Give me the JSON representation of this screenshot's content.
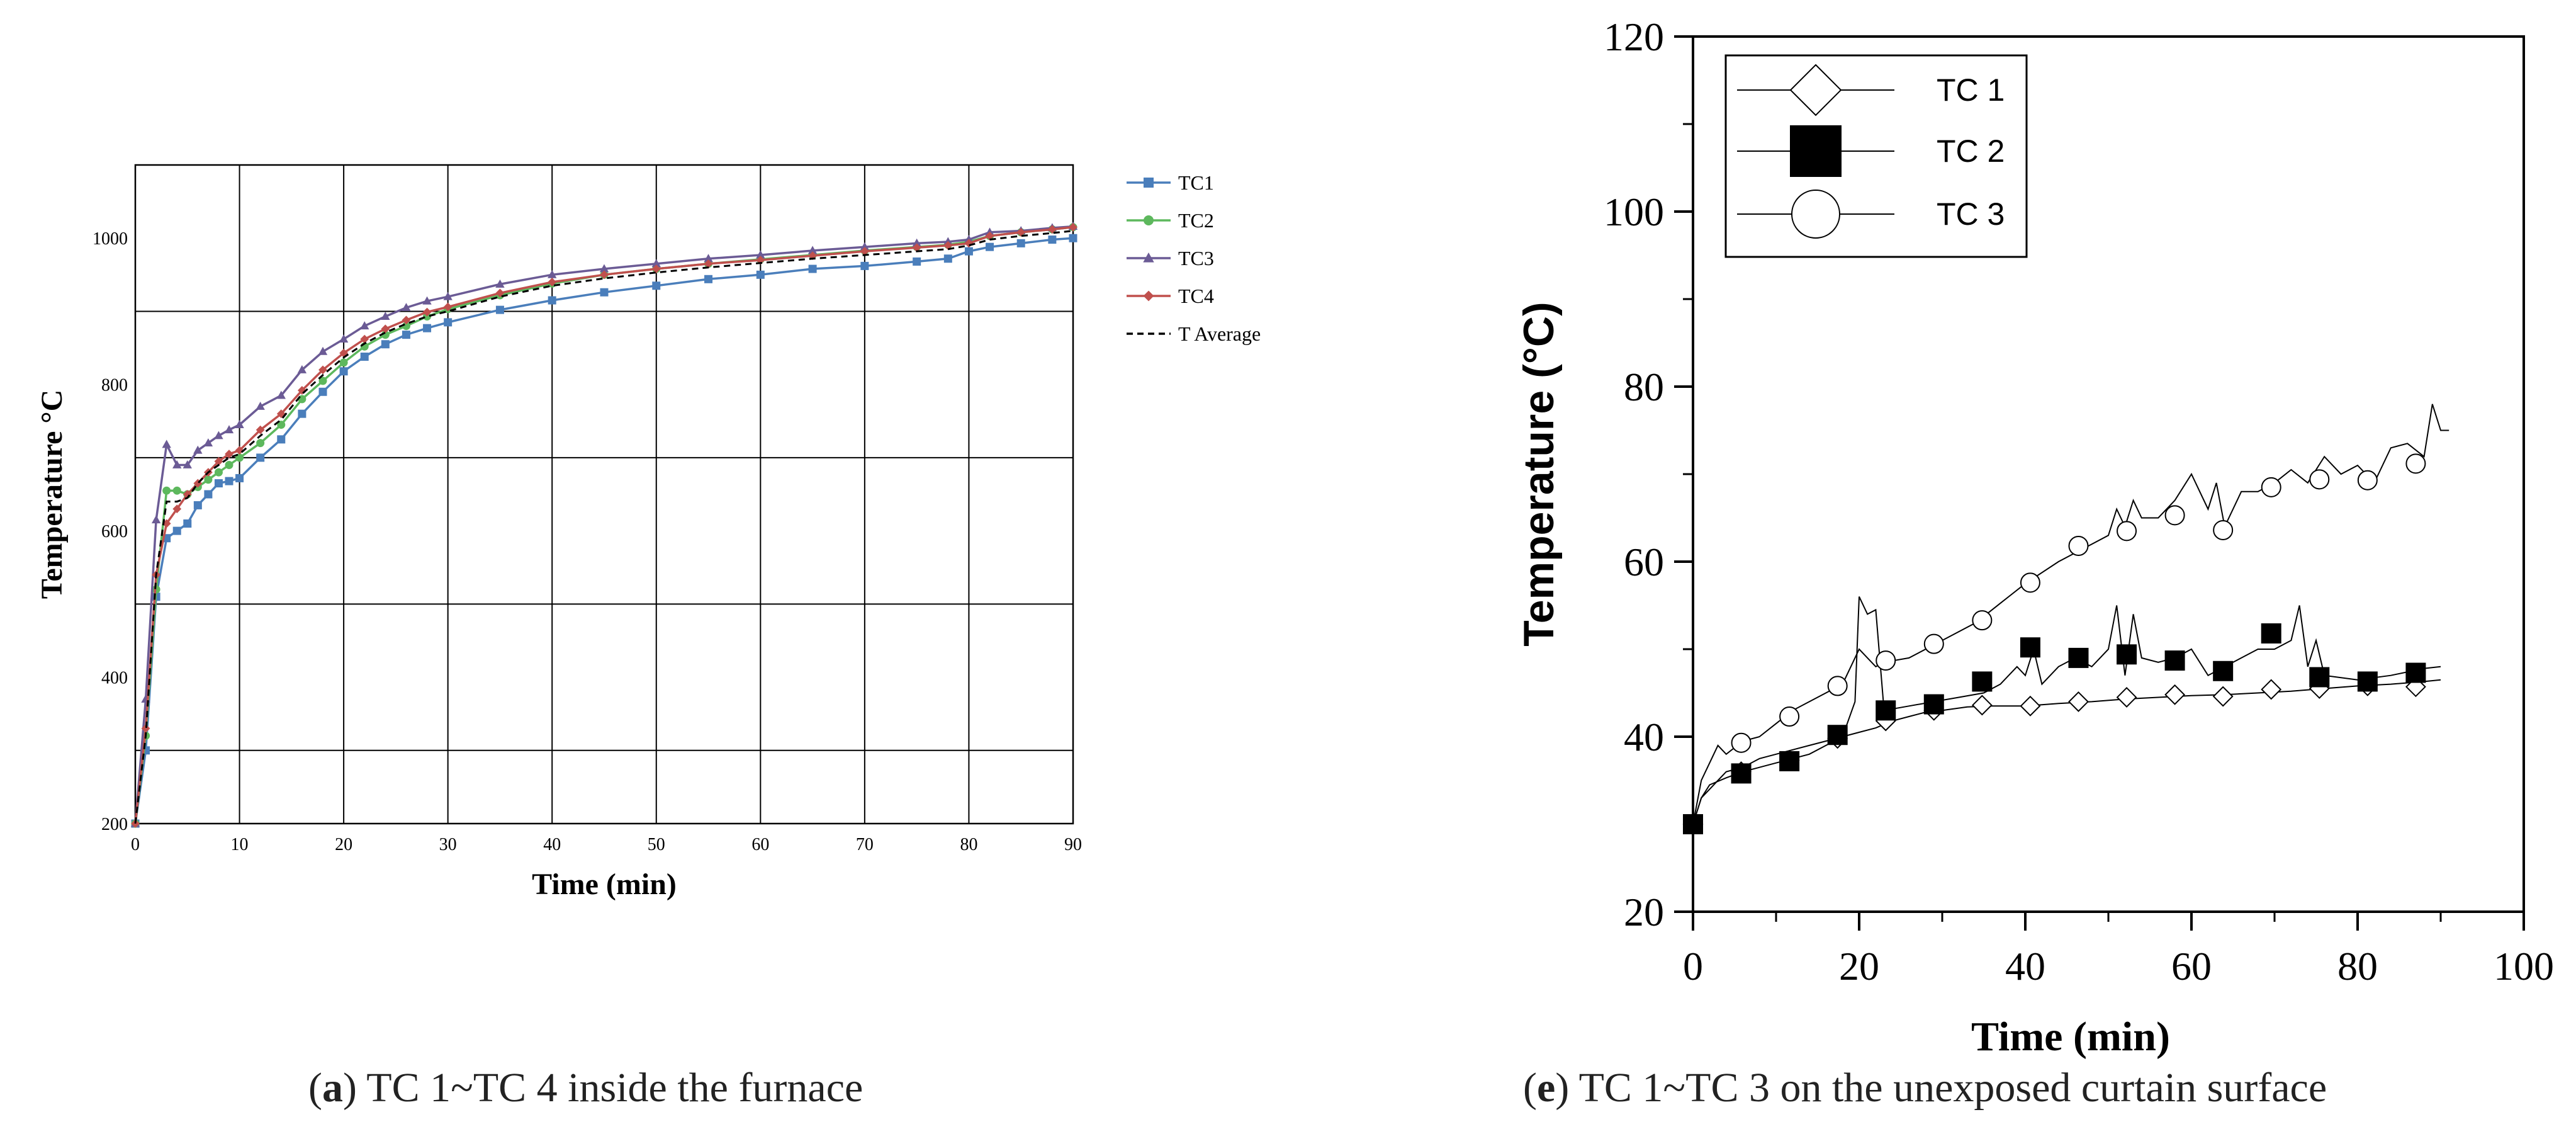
{
  "captions": {
    "a": {
      "letter": "a",
      "text": "TC 1~TC 4 inside the furnace"
    },
    "e": {
      "letter": "e",
      "text": "TC 1~TC 3 on the unexposed curtain surface"
    }
  },
  "chart_data": [
    {
      "id": "a",
      "type": "line",
      "title": "",
      "xlabel": "Time (min)",
      "ylabel": "Temperature °C",
      "xlim": [
        0,
        90
      ],
      "ylim": [
        200,
        1100
      ],
      "xticks": [
        0,
        10,
        20,
        30,
        40,
        50,
        60,
        70,
        80,
        90
      ],
      "yticks": [
        200,
        400,
        600,
        800,
        1000
      ],
      "hgrid": [
        300,
        500,
        700,
        900,
        1100
      ],
      "vgrid": [
        0,
        10,
        20,
        30,
        40,
        50,
        60,
        70,
        80,
        90
      ],
      "legend_position": "right",
      "series": [
        {
          "name": "TC1",
          "color": "#4a7ebb",
          "marker": "square",
          "x": [
            0,
            1,
            2,
            3,
            4,
            5,
            6,
            7,
            8,
            9,
            10,
            12,
            14,
            16,
            18,
            20,
            22,
            24,
            26,
            28,
            30,
            35,
            40,
            45,
            50,
            55,
            60,
            65,
            70,
            75,
            78,
            80,
            82,
            85,
            88,
            90
          ],
          "y": [
            200,
            300,
            510,
            590,
            600,
            610,
            635,
            650,
            665,
            668,
            672,
            700,
            725,
            760,
            790,
            818,
            838,
            855,
            868,
            877,
            885,
            902,
            915,
            926,
            935,
            944,
            950,
            958,
            962,
            968,
            972,
            982,
            988,
            993,
            998,
            1000
          ]
        },
        {
          "name": "TC2",
          "color": "#5db85d",
          "marker": "circle",
          "x": [
            0,
            1,
            2,
            3,
            4,
            5,
            6,
            7,
            8,
            9,
            10,
            12,
            14,
            16,
            18,
            20,
            22,
            24,
            26,
            28,
            30,
            35,
            40,
            45,
            50,
            55,
            60,
            65,
            70,
            75,
            78,
            80,
            82,
            85,
            88,
            90
          ],
          "y": [
            200,
            320,
            520,
            655,
            655,
            650,
            660,
            670,
            680,
            690,
            700,
            720,
            745,
            780,
            805,
            830,
            852,
            868,
            880,
            893,
            903,
            922,
            938,
            950,
            958,
            965,
            971,
            977,
            983,
            988,
            991,
            995,
            1003,
            1008,
            1012,
            1015
          ]
        },
        {
          "name": "TC3",
          "color": "#6b5b95",
          "marker": "triangle",
          "x": [
            0,
            1,
            2,
            3,
            4,
            5,
            6,
            7,
            8,
            9,
            10,
            12,
            14,
            16,
            18,
            20,
            22,
            24,
            26,
            28,
            30,
            35,
            40,
            45,
            50,
            55,
            60,
            65,
            70,
            75,
            78,
            80,
            82,
            85,
            88,
            90
          ],
          "y": [
            200,
            370,
            615,
            718,
            690,
            690,
            710,
            720,
            730,
            738,
            745,
            770,
            785,
            820,
            845,
            862,
            880,
            893,
            905,
            914,
            920,
            937,
            950,
            958,
            965,
            972,
            977,
            983,
            988,
            993,
            995,
            998,
            1008,
            1010,
            1014,
            1016
          ]
        },
        {
          "name": "TC4",
          "color": "#c0504d",
          "marker": "diamond",
          "x": [
            0,
            1,
            2,
            3,
            4,
            5,
            6,
            7,
            8,
            9,
            10,
            12,
            14,
            16,
            18,
            20,
            22,
            24,
            26,
            28,
            30,
            35,
            40,
            45,
            50,
            55,
            60,
            65,
            70,
            75,
            78,
            80,
            82,
            85,
            88,
            90
          ],
          "y": [
            200,
            330,
            540,
            610,
            630,
            650,
            665,
            680,
            695,
            705,
            710,
            738,
            760,
            792,
            820,
            843,
            862,
            876,
            888,
            899,
            906,
            925,
            940,
            950,
            958,
            965,
            970,
            976,
            982,
            987,
            990,
            993,
            1003,
            1008,
            1012,
            1015
          ]
        },
        {
          "name": "T Average",
          "color": "#000000",
          "marker": "none",
          "dashed": true,
          "x": [
            0,
            1,
            2,
            3,
            4,
            5,
            6,
            7,
            8,
            9,
            10,
            12,
            14,
            16,
            18,
            20,
            22,
            24,
            26,
            28,
            30,
            35,
            40,
            45,
            50,
            55,
            60,
            65,
            70,
            75,
            78,
            80,
            82,
            85,
            88,
            90
          ],
          "y": [
            200,
            320,
            540,
            640,
            640,
            645,
            665,
            680,
            690,
            700,
            705,
            730,
            752,
            787,
            813,
            837,
            856,
            871,
            883,
            893,
            900,
            920,
            935,
            945,
            953,
            960,
            966,
            972,
            977,
            982,
            985,
            990,
            998,
            1003,
            1007,
            1010
          ]
        }
      ]
    },
    {
      "id": "e",
      "type": "line",
      "title": "",
      "xlabel": "Time (min)",
      "ylabel": "Temperature (°C)",
      "xlim": [
        0,
        100
      ],
      "ylim": [
        20,
        120
      ],
      "xticks": [
        0,
        20,
        40,
        60,
        80,
        100
      ],
      "yticks": [
        20,
        40,
        60,
        80,
        100,
        120
      ],
      "legend_position": "top-left",
      "series": [
        {
          "name": "TC 1",
          "marker": "diamond",
          "x": [
            0,
            1,
            2,
            3,
            4,
            6,
            8,
            10,
            12,
            14,
            16,
            18,
            20,
            22,
            24,
            26,
            28,
            30,
            33,
            36,
            40,
            44,
            48,
            52,
            56,
            60,
            64,
            68,
            72,
            76,
            80,
            84,
            88,
            90
          ],
          "y": [
            30,
            33,
            34,
            35,
            36,
            36.5,
            37.5,
            38,
            38.5,
            39,
            39.5,
            40,
            40.5,
            41,
            41.8,
            42.3,
            42.8,
            43,
            43.4,
            43.5,
            43.5,
            43.8,
            44,
            44.3,
            44.5,
            44.7,
            44.8,
            45,
            45.2,
            45.5,
            45.8,
            46,
            46.3,
            46.5
          ],
          "markers": [
            [
              0,
              30
            ],
            [
              5.8,
              36
            ],
            [
              11.6,
              37.3
            ],
            [
              17.4,
              39.8
            ],
            [
              23.2,
              41.8
            ],
            [
              29,
              43
            ],
            [
              34.8,
              43.6
            ],
            [
              40.6,
              43.5
            ],
            [
              46.4,
              44
            ],
            [
              52.2,
              44.5
            ],
            [
              58,
              44.8
            ],
            [
              63.8,
              44.6
            ],
            [
              69.6,
              45.4
            ],
            [
              75.4,
              45.5
            ],
            [
              81.2,
              45.8
            ],
            [
              87,
              45.7
            ]
          ]
        },
        {
          "name": "TC 2",
          "marker": "square",
          "x": [
            0,
            1,
            2,
            4,
            6,
            8,
            10,
            12,
            14,
            16,
            18,
            19.5,
            20,
            21,
            22,
            23,
            26,
            29,
            32,
            35,
            37,
            39,
            40,
            41,
            42,
            44,
            46,
            48,
            50,
            51,
            52,
            53,
            54,
            56,
            58,
            60,
            62,
            64,
            66,
            68,
            70,
            72,
            73,
            74,
            75,
            76,
            80,
            84,
            88,
            90
          ],
          "y": [
            30,
            33,
            34.5,
            35.3,
            36,
            36.5,
            37,
            37.5,
            38,
            39,
            40,
            44,
            56,
            54,
            54.5,
            43,
            43.5,
            44,
            44.5,
            45,
            46,
            48,
            47,
            50,
            46,
            48,
            49,
            48,
            50,
            55,
            47,
            54,
            49,
            48.5,
            49,
            50,
            47,
            48,
            49,
            50,
            50,
            51,
            55,
            48,
            51,
            47,
            46.5,
            47,
            47.8,
            48
          ],
          "markers": [
            [
              0,
              30
            ],
            [
              5.8,
              35.8
            ],
            [
              11.6,
              37.2
            ],
            [
              17.4,
              40.2
            ],
            [
              23.2,
              43
            ],
            [
              29,
              43.7
            ],
            [
              34.8,
              46.3
            ],
            [
              40.6,
              50.2
            ],
            [
              46.4,
              49
            ],
            [
              52.2,
              49.4
            ],
            [
              58,
              48.7
            ],
            [
              63.8,
              47.5
            ],
            [
              69.6,
              51.8
            ],
            [
              75.4,
              46.8
            ],
            [
              81.2,
              46.3
            ],
            [
              87,
              47.3
            ]
          ]
        },
        {
          "name": "TC 3",
          "marker": "circle",
          "x": [
            0,
            1,
            2,
            3,
            4,
            6,
            8,
            10,
            12,
            14,
            16,
            18,
            20,
            22,
            23,
            26,
            30,
            34,
            38,
            40,
            44,
            48,
            50,
            51,
            52,
            53,
            54,
            56,
            58,
            60,
            62,
            63,
            64,
            66,
            68,
            70,
            72,
            74,
            76,
            78,
            80,
            82,
            84,
            86,
            88,
            89,
            90,
            91
          ],
          "y": [
            30,
            35,
            37,
            39,
            38,
            39.5,
            40,
            41.5,
            43,
            44,
            45,
            46,
            50,
            48,
            48.5,
            49,
            51,
            53,
            56,
            57.5,
            60,
            62,
            63,
            66,
            64,
            67,
            65,
            65,
            67,
            70,
            66,
            69,
            64,
            68,
            68,
            69,
            70.5,
            69,
            72,
            70,
            71,
            69,
            73,
            73.5,
            72,
            78,
            75,
            75
          ],
          "markers": [
            [
              5.8,
              39.3
            ],
            [
              11.6,
              42.3
            ],
            [
              17.4,
              45.8
            ],
            [
              23.2,
              48.7
            ],
            [
              29,
              50.6
            ],
            [
              34.8,
              53.3
            ],
            [
              40.6,
              57.6
            ],
            [
              46.4,
              61.8
            ],
            [
              52.2,
              63.5
            ],
            [
              58,
              65.3
            ],
            [
              63.8,
              63.6
            ],
            [
              69.6,
              68.5
            ],
            [
              75.4,
              69.4
            ],
            [
              81.2,
              69.3
            ],
            [
              87,
              71.2
            ]
          ]
        }
      ]
    }
  ]
}
